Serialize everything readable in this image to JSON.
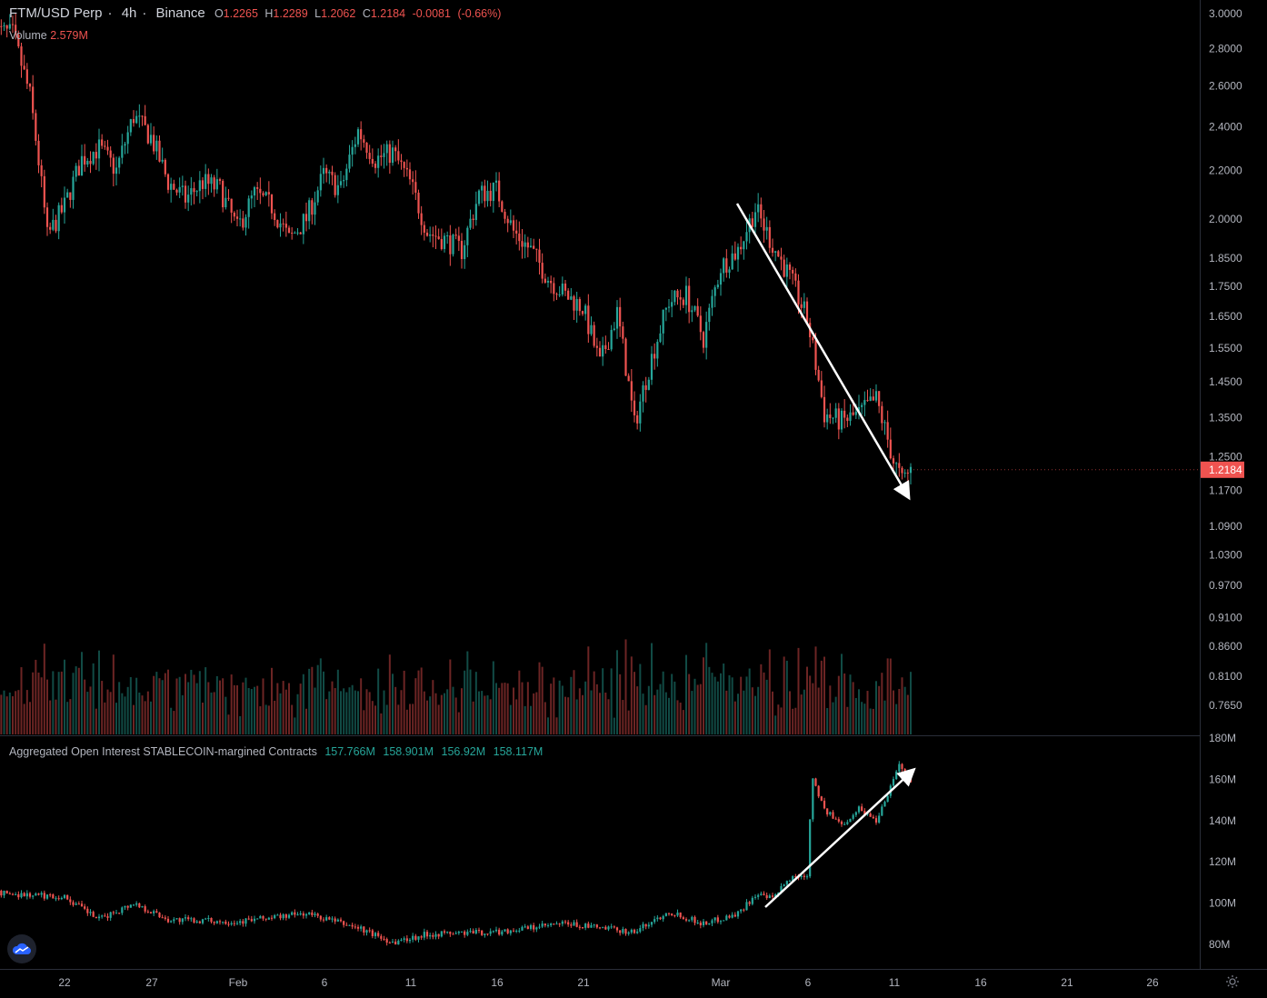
{
  "header": {
    "symbol": "FTM/USD Perp",
    "interval": "4h",
    "exchange": "Binance",
    "open_label": "O",
    "open": "1.2265",
    "high_label": "H",
    "high": "1.2289",
    "low_label": "L",
    "low": "1.2062",
    "close_label": "C",
    "close": "1.2184",
    "change": "-0.0081",
    "change_pct": "(-0.66%)"
  },
  "volume_legend": {
    "label": "Volume",
    "value": "2.579M"
  },
  "oi_legend": {
    "label": "Aggregated Open Interest STABLECOIN-margined Contracts",
    "o": "157.766M",
    "h": "158.901M",
    "l": "156.92M",
    "c": "158.117M"
  },
  "last_price_tag": "1.2184",
  "colors": {
    "up": "#26a69a",
    "down": "#ef5350",
    "axis_text": "#b2b5be",
    "arrow": "#ffffff",
    "price_tag": "#ef5350"
  },
  "icons": {
    "logo": "tradingview-cloud-icon",
    "settings": "gear-icon"
  },
  "chart_data": [
    {
      "type": "candlestick",
      "title": "FTM/USD Perp · 4h · Binance",
      "y_scale": "log",
      "y_ticks": [
        "3.0000",
        "2.8000",
        "2.6000",
        "2.4000",
        "2.2000",
        "2.0000",
        "1.8500",
        "1.7500",
        "1.6500",
        "1.5500",
        "1.4500",
        "1.3500",
        "1.2500",
        "1.1700",
        "1.0900",
        "1.0300",
        "0.9700",
        "0.9100",
        "0.8600",
        "0.8100",
        "0.7650"
      ],
      "x_ticks": [
        "22",
        "27",
        "Feb",
        "6",
        "11",
        "16",
        "21",
        "Mar",
        "6",
        "11",
        "16",
        "21",
        "26"
      ],
      "close_path": [
        [
          "Jan 18",
          2.9
        ],
        [
          "Jan 19",
          2.88
        ],
        [
          "Jan 20",
          2.55
        ],
        [
          "Jan 21",
          1.93
        ],
        [
          "Jan 22",
          2.05
        ],
        [
          "Jan 23",
          2.25
        ],
        [
          "Jan 24",
          2.3
        ],
        [
          "Jan 25",
          2.2
        ],
        [
          "Jan 26",
          2.45
        ],
        [
          "Jan 27",
          2.35
        ],
        [
          "Jan 28",
          2.15
        ],
        [
          "Jan 29",
          2.08
        ],
        [
          "Jan 30",
          2.15
        ],
        [
          "Jan 31",
          2.12
        ],
        [
          "Feb 1",
          1.96
        ],
        [
          "Feb 2",
          2.1
        ],
        [
          "Feb 3",
          2.05
        ],
        [
          "Feb 4",
          1.92
        ],
        [
          "Feb 5",
          2.0
        ],
        [
          "Feb 6",
          2.18
        ],
        [
          "Feb 7",
          2.12
        ],
        [
          "Feb 8",
          2.38
        ],
        [
          "Feb 9",
          2.25
        ],
        [
          "Feb 10",
          2.28
        ],
        [
          "Feb 11",
          2.15
        ],
        [
          "Feb 12",
          1.95
        ],
        [
          "Feb 13",
          1.92
        ],
        [
          "Feb 14",
          1.88
        ],
        [
          "Feb 15",
          2.1
        ],
        [
          "Feb 16",
          2.12
        ],
        [
          "Feb 17",
          1.95
        ],
        [
          "Feb 18",
          1.88
        ],
        [
          "Feb 19",
          1.78
        ],
        [
          "Feb 20",
          1.72
        ],
        [
          "Feb 21",
          1.68
        ],
        [
          "Feb 22",
          1.5
        ],
        [
          "Feb 23",
          1.66
        ],
        [
          "Feb 24",
          1.33
        ],
        [
          "Feb 25",
          1.52
        ],
        [
          "Feb 26",
          1.7
        ],
        [
          "Feb 27",
          1.72
        ],
        [
          "Feb 28",
          1.58
        ],
        [
          "Mar 1",
          1.82
        ],
        [
          "Mar 2",
          1.88
        ],
        [
          "Mar 3",
          2.04
        ],
        [
          "Mar 4",
          1.9
        ],
        [
          "Mar 5",
          1.78
        ],
        [
          "Mar 6",
          1.64
        ],
        [
          "Mar 7",
          1.36
        ],
        [
          "Mar 8",
          1.34
        ],
        [
          "Mar 9",
          1.36
        ],
        [
          "Mar 10",
          1.4
        ],
        [
          "Mar 11",
          1.24
        ],
        [
          "Mar 11.5",
          1.19
        ],
        [
          "Mar 12",
          1.22
        ]
      ],
      "last": {
        "open": 1.2265,
        "high": 1.2289,
        "low": 1.2062,
        "close": 1.2184
      }
    },
    {
      "type": "bar",
      "title": "Volume",
      "last_value": "2.579M"
    },
    {
      "type": "candlestick",
      "title": "Aggregated Open Interest STABLECOIN-margined Contracts",
      "y_ticks": [
        "180M",
        "160M",
        "140M",
        "120M",
        "100M",
        "80M"
      ],
      "close_path": [
        [
          "Jan 18",
          105
        ],
        [
          "Jan 22",
          103
        ],
        [
          "Jan 24",
          92
        ],
        [
          "Jan 26",
          100
        ],
        [
          "Jan 28",
          92
        ],
        [
          "Feb 1",
          91
        ],
        [
          "Feb 5",
          95
        ],
        [
          "Feb 8",
          88
        ],
        [
          "Feb 10",
          81
        ],
        [
          "Feb 12",
          85
        ],
        [
          "Feb 16",
          86
        ],
        [
          "Feb 20",
          90
        ],
        [
          "Feb 24",
          86
        ],
        [
          "Feb 26",
          96
        ],
        [
          "Feb 28",
          90
        ],
        [
          "Mar 2",
          95
        ],
        [
          "Mar 3",
          104
        ],
        [
          "Mar 4",
          102
        ],
        [
          "Mar 5",
          112
        ],
        [
          "Mar 6",
          114
        ],
        [
          "Mar 6.3",
          162
        ],
        [
          "Mar 7",
          145
        ],
        [
          "Mar 8",
          138
        ],
        [
          "Mar 9",
          146
        ],
        [
          "Mar 10",
          140
        ],
        [
          "Mar 11",
          160
        ],
        [
          "Mar 11.3",
          168
        ],
        [
          "Mar 12",
          158
        ]
      ],
      "last": {
        "open": "157.766M",
        "high": "158.901M",
        "low": "156.92M",
        "close": "158.117M"
      }
    }
  ]
}
